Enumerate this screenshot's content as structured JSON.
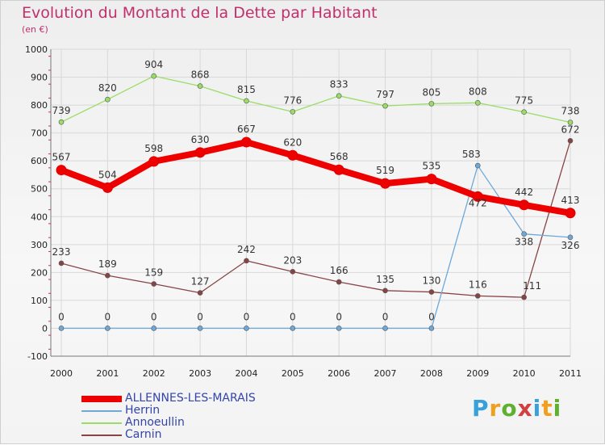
{
  "chart_data": {
    "type": "line",
    "title": "Evolution du Montant de la Dette par Habitant",
    "subtitle": "(en €)",
    "x": [
      "2000",
      "2001",
      "2002",
      "2003",
      "2004",
      "2005",
      "2006",
      "2007",
      "2008",
      "2009",
      "2010",
      "2011"
    ],
    "y_ticks": [
      "-100",
      "0",
      "100",
      "200",
      "300",
      "400",
      "500",
      "600",
      "700",
      "800",
      "900",
      "1000"
    ],
    "ylim": [
      -100,
      1000
    ],
    "grid": true,
    "legend_position": "bottom-left",
    "series": [
      {
        "name": "ALLENNES-LES-MARAIS",
        "color": "#ee0000",
        "values": [
          567,
          504,
          598,
          630,
          667,
          620,
          568,
          519,
          535,
          472,
          442,
          413
        ]
      },
      {
        "name": "Herrin",
        "color": "#6fa8d8",
        "values": [
          0,
          0,
          0,
          0,
          0,
          0,
          0,
          0,
          0,
          583,
          338,
          326
        ]
      },
      {
        "name": "Annoeullin",
        "color": "#99dd66",
        "values": [
          739,
          820,
          904,
          868,
          815,
          776,
          833,
          797,
          805,
          808,
          775,
          738
        ]
      },
      {
        "name": "Carnin",
        "color": "#884444",
        "values": [
          233,
          189,
          159,
          127,
          242,
          203,
          166,
          135,
          130,
          116,
          111,
          672
        ]
      }
    ]
  },
  "logo": {
    "letters": [
      "P",
      "r",
      "o",
      "x",
      "i",
      "t",
      "i"
    ],
    "colors": [
      "#3aa0d8",
      "#f0a020",
      "#60b030",
      "#d04040",
      "#3aa0d8",
      "#f0a020",
      "#60b030"
    ]
  }
}
